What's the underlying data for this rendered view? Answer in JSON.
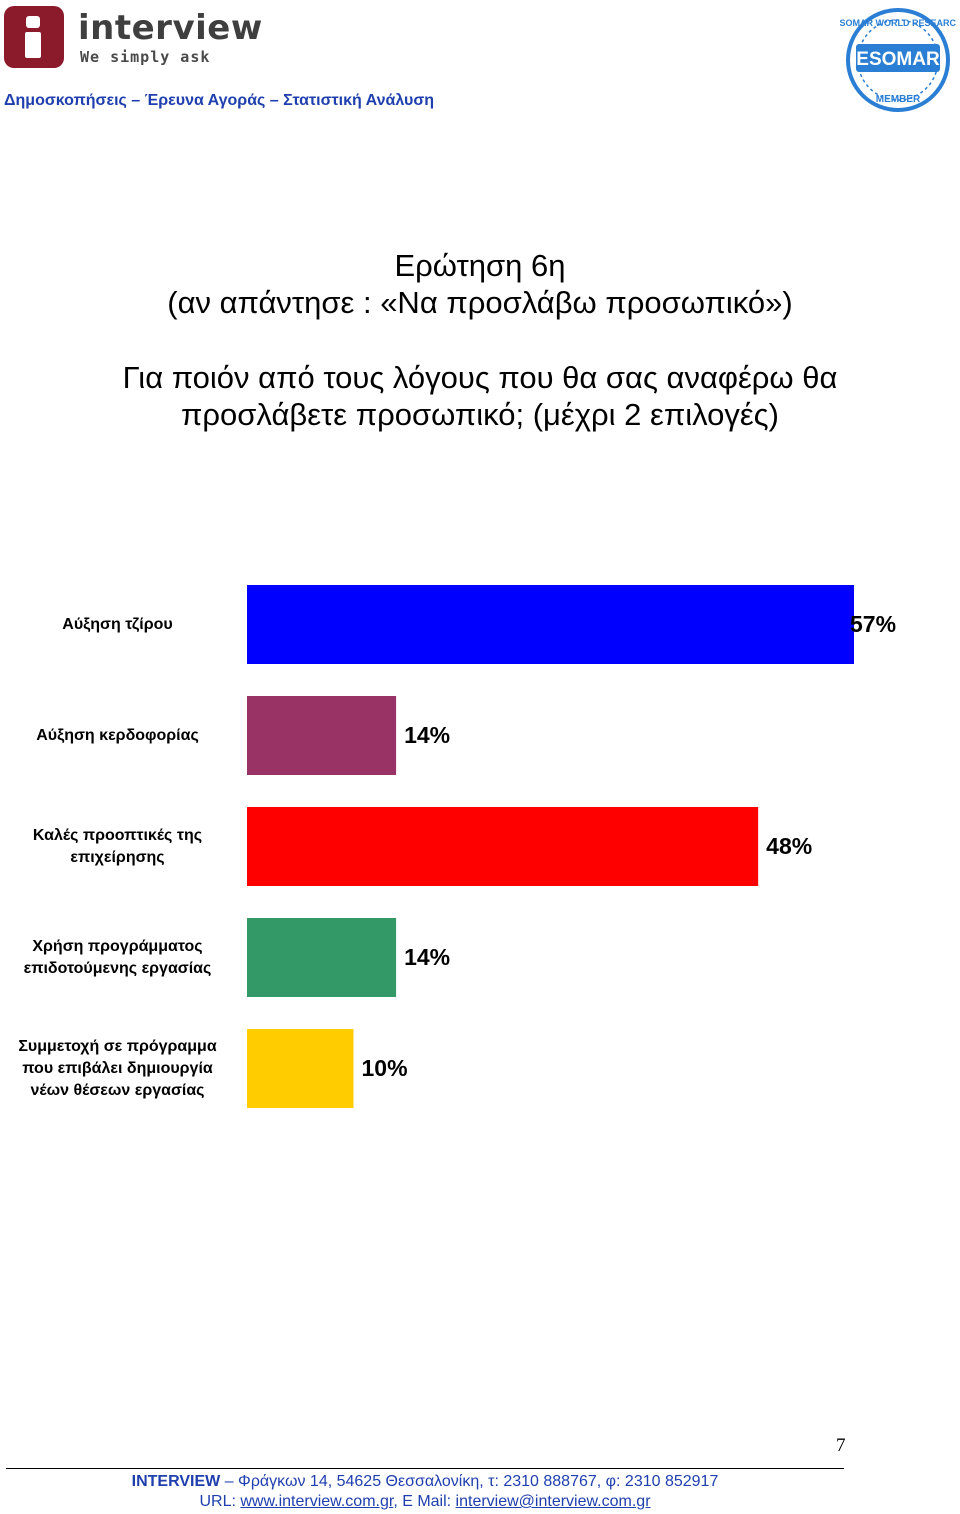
{
  "header": {
    "logo_word": "interview",
    "logo_tagline": "We simply ask",
    "subheader": "Δημοσκοπήσεις – Έρευνα Αγοράς – Στατιστική Ανάλυση",
    "esomar_logo_text": "ESOMAR",
    "esomar_ring_text": "ESOMAR WORLD RESEARCH",
    "esomar_member_text": "MEMBER"
  },
  "question": {
    "line1": "Ερώτηση 6η",
    "line2": "(αν απάντησε : «Να προσλάβω προσωπικό»)",
    "line3": "Για ποιόν από τους λόγους που θα σας αναφέρω θα",
    "line4": "προσλάβετε προσωπικό; (μέχρι 2 επιλογές)"
  },
  "chart_data": {
    "type": "bar",
    "orientation": "horizontal",
    "categories": [
      "Αύξηση τζίρου",
      "Αύξηση κερδοφορίας",
      "Καλές προοπτικές της επιχείρησης",
      "Χρήση προγράμματος επιδοτούμενης εργασίας",
      "Συμμετοχή σε πρόγραμμα που επιβάλει δημιουργία νέων θέσεων εργασίας"
    ],
    "category_lines": [
      [
        "Αύξηση τζίρου"
      ],
      [
        "Αύξηση κερδοφορίας"
      ],
      [
        "Καλές προοπτικές της",
        "επιχείρησης"
      ],
      [
        "Χρήση προγράμματος",
        "επιδοτούμενης εργασίας"
      ],
      [
        "Συμμετοχή σε πρόγραμμα",
        "που επιβάλει δημιουργία",
        "νέων θέσεων εργασίας"
      ]
    ],
    "values": [
      57,
      14,
      48,
      14,
      10
    ],
    "value_labels": [
      "57%",
      "14%",
      "48%",
      "14%",
      "10%"
    ],
    "colors": [
      "#0000ff",
      "#993366",
      "#ff0000",
      "#339966",
      "#ffcc00"
    ],
    "xlim": [
      0,
      60
    ],
    "grid": false
  },
  "footer": {
    "page_number": "7",
    "company": "INTERVIEW",
    "address": " – Φράγκων 14, 54625 Θεσσαλονίκη, τ: 2310 888767, φ: 2310 852917",
    "url_label": "URL: ",
    "url": "www.interview.com.gr",
    "email_label": ", E Mail: ",
    "email": "interview@interview.com.gr"
  }
}
